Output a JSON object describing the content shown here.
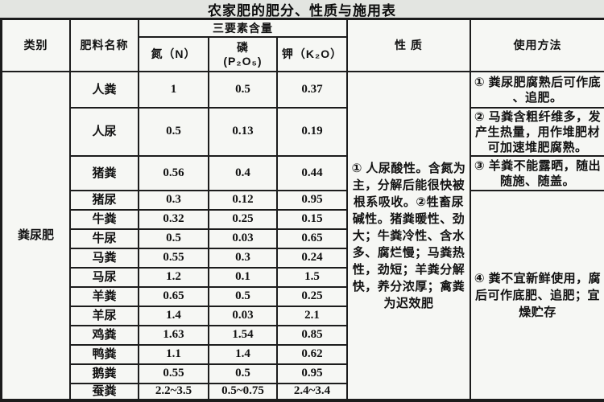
{
  "title": "农家肥的肥分、性质与施用表",
  "table": {
    "headers": {
      "category": "类别",
      "name": "肥料名称",
      "three_elements": "三要素含量",
      "n": "氮（N）",
      "p": "磷\n(P₂O₅)",
      "k": "钾（K₂O）",
      "property": "性  质",
      "usage": "使用方法"
    },
    "category_label": "粪尿肥",
    "rows": [
      {
        "name": "人粪",
        "n": "1",
        "p": "0.5",
        "k": "0.37"
      },
      {
        "name": "人尿",
        "n": "0.5",
        "p": "0.13",
        "k": "0.19"
      },
      {
        "name": "猪粪",
        "n": "0.56",
        "p": "0.4",
        "k": "0.44"
      },
      {
        "name": "猪尿",
        "n": "0.3",
        "p": "0.12",
        "k": "0.95"
      },
      {
        "name": "牛粪",
        "n": "0.32",
        "p": "0.25",
        "k": "0.15"
      },
      {
        "name": "牛尿",
        "n": "0.5",
        "p": "0.03",
        "k": "0.65"
      },
      {
        "name": "马粪",
        "n": "0.55",
        "p": "0.3",
        "k": "0.24"
      },
      {
        "name": "马尿",
        "n": "1.2",
        "p": "0.1",
        "k": "1.5"
      },
      {
        "name": "羊粪",
        "n": "0.65",
        "p": "0.5",
        "k": "0.25"
      },
      {
        "name": "羊尿",
        "n": "1.4",
        "p": "0.03",
        "k": "2.1"
      },
      {
        "name": "鸡粪",
        "n": "1.63",
        "p": "1.54",
        "k": "0.85"
      },
      {
        "name": "鸭粪",
        "n": "1.1",
        "p": "1.4",
        "k": "0.62"
      },
      {
        "name": "鹅粪",
        "n": "0.55",
        "p": "0.5",
        "k": "0.95"
      },
      {
        "name": "蚕粪",
        "n": "2.2~3.5",
        "p": "0.5~0.75",
        "k": "2.4~3.4"
      }
    ],
    "property_text": "①  人尿酸性。含氮为主，分解后能很快被根系吸收。②牲畜尿碱性。猪粪暖性、劲大；牛粪冷性、含水多、腐烂慢；马粪热性，劲短；羊粪分解快，养分浓厚；禽粪为迟效肥",
    "usage": [
      "①  粪尿肥腐熟后可作底\n、追肥。",
      "②  马粪含粗纤维多，发\n产生热量，用作堆肥材\n可加速堆肥腐熟。",
      "③  羊粪不能露晒，随出\n随施、随盖。",
      "④ 粪不宜新鲜使用，腐\n后可作底肥、追肥；宜\n燥贮存"
    ]
  },
  "colors": {
    "page_bg": "#e3e5e1",
    "cell_bg": "#f6f7f4",
    "line": "#1c1c1c"
  }
}
